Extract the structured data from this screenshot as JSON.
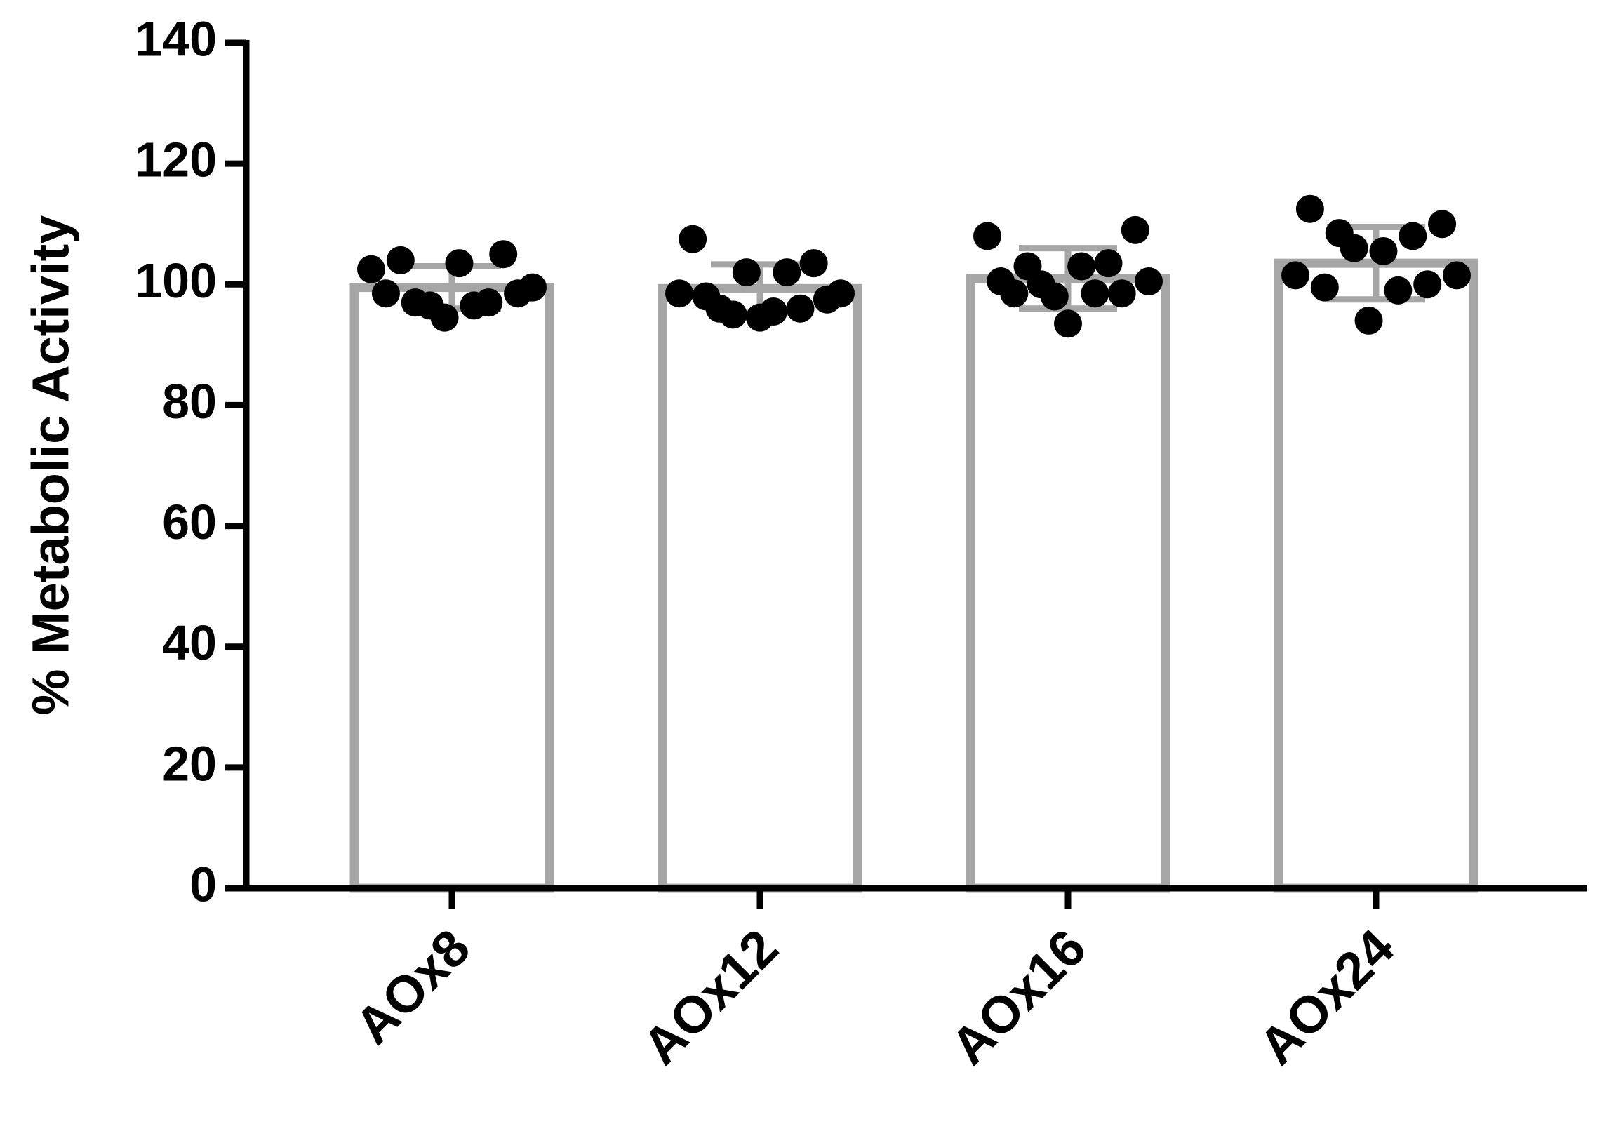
{
  "chart_data": {
    "type": "bar",
    "y_label": "% Metabolic Activity",
    "categories": [
      "AOx8",
      "AOx12",
      "AOx16",
      "AOx24"
    ],
    "values": [
      99.5,
      99.3,
      101,
      103.5
    ],
    "errors": [
      3.5,
      4,
      5,
      6
    ],
    "points": [
      [
        102.5,
        98.5,
        104,
        97,
        96.5,
        94.5,
        103.5,
        96.5,
        97,
        105,
        98.5,
        99.5
      ],
      [
        98.5,
        107.5,
        98,
        96,
        95,
        102,
        94.5,
        95.5,
        102,
        96,
        103.5,
        97.5,
        98.5
      ],
      [
        108,
        100.5,
        98.5,
        103,
        100,
        98,
        93.5,
        103,
        98.5,
        103.5,
        98.5,
        109,
        100.5
      ],
      [
        101.5,
        112.5,
        99.5,
        108.5,
        106,
        94,
        105.5,
        99,
        108,
        100,
        110,
        101.5
      ]
    ],
    "color": "#a6a6a6",
    "point_color": "#000000",
    "ylim": [
      0,
      140
    ],
    "yticks": [
      0,
      20,
      40,
      60,
      80,
      100,
      120,
      140
    ],
    "grid": false
  }
}
